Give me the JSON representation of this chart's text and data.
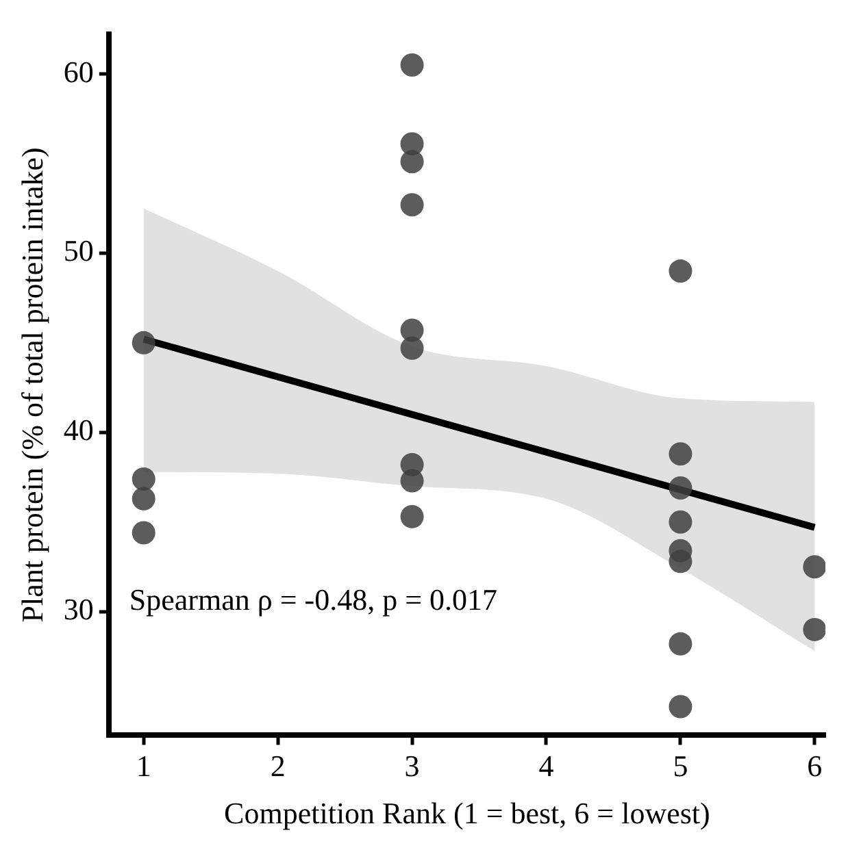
{
  "chart_data": {
    "type": "scatter",
    "xlabel": "Competition Rank (1 = best, 6 = lowest)",
    "ylabel": "Plant protein (% of total protein intake)",
    "xlim": [
      0.74,
      6.08
    ],
    "xticks": [
      1,
      2,
      3,
      4,
      5,
      6
    ],
    "ylim": [
      23.1,
      62.2
    ],
    "yticks": [
      30,
      40,
      50,
      60
    ],
    "grid": false,
    "legend": false,
    "annotations": [
      "Spearman ρ = -0.48, p = 0.017"
    ],
    "series": [
      {
        "type": "line",
        "marker": "none",
        "color": "#000000",
        "x": [
          1,
          2,
          3,
          4,
          5,
          6
        ],
        "values": [
          45.2,
          43.1,
          41.0,
          38.9,
          36.8,
          34.7
        ],
        "lower": [
          37.8,
          37.7,
          37.0,
          36.3,
          32.4,
          27.8
        ],
        "upper": [
          52.5,
          49.0,
          44.8,
          43.7,
          41.9,
          41.7
        ]
      },
      {
        "marker": "circle",
        "color": "#404040",
        "x": [
          1,
          1,
          1,
          1,
          3,
          3,
          3,
          3,
          3,
          3,
          3,
          3,
          3,
          5,
          5,
          5,
          5,
          5,
          5,
          5,
          5,
          6,
          6
        ],
        "values": [
          45.0,
          37.4,
          36.3,
          34.4,
          60.5,
          56.1,
          55.1,
          52.7,
          45.7,
          44.7,
          38.2,
          37.3,
          35.3,
          49.0,
          38.8,
          36.9,
          35.0,
          33.4,
          32.8,
          28.2,
          24.7,
          32.5,
          29.0
        ]
      }
    ]
  }
}
